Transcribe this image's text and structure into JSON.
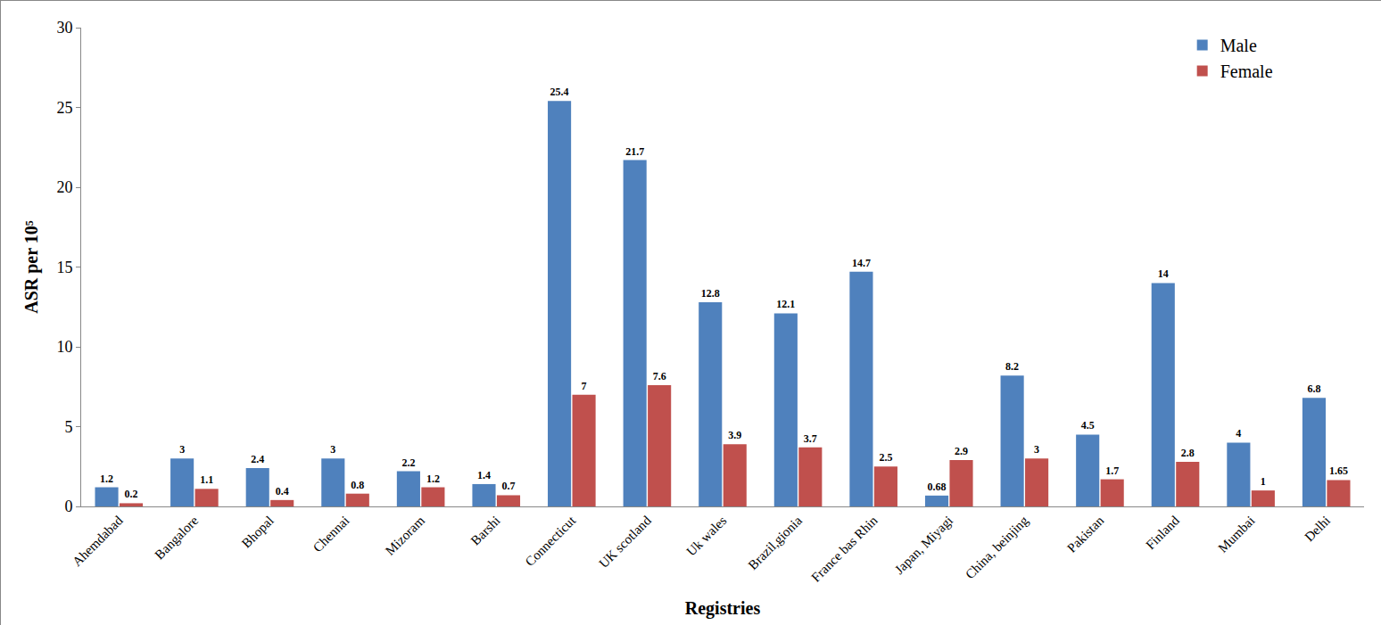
{
  "chart_data": {
    "type": "bar",
    "x_label": "Registries",
    "y_label": "ASR per 10⁵",
    "categories": [
      "Ahemdabad",
      "Bangalore",
      "Bhopal",
      "Chennai",
      "Mizoram",
      "Barshi",
      "Connecticut",
      "UK scotland",
      "Uk wales",
      "Brazil,gionia",
      "France bas Rhin",
      "Japan, Miyagi",
      "China, beinjing",
      "Pakistan",
      "Finland",
      "Mumbai",
      "Delhi"
    ],
    "series": [
      {
        "name": "Male",
        "color": "#4f81bd",
        "values": [
          1.2,
          3,
          2.4,
          3,
          2.2,
          1.4,
          25.4,
          21.7,
          12.8,
          12.1,
          14.7,
          0.68,
          8.2,
          4.5,
          14,
          4,
          6.8
        ]
      },
      {
        "name": "Female",
        "color": "#c0504d",
        "values": [
          0.2,
          1.1,
          0.4,
          0.8,
          1.2,
          0.7,
          7,
          7.6,
          3.9,
          3.7,
          2.5,
          2.9,
          3,
          1.7,
          2.8,
          1,
          1.65
        ]
      }
    ],
    "ylim": [
      0,
      30
    ],
    "yticks": [
      0,
      5,
      10,
      15,
      20,
      25,
      30
    ],
    "grid": false,
    "legend": "upper right",
    "data_labels": true
  }
}
